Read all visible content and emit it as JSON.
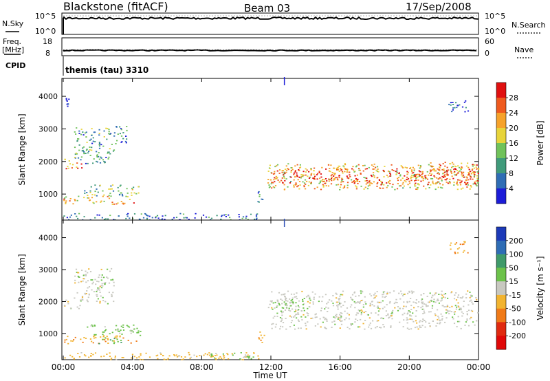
{
  "header": {
    "station": "Blackstone (fitACF)",
    "beam": "Beam 03",
    "date": "17/Sep/2008"
  },
  "status": {
    "left_labels": [
      "N.Sky",
      "Freq.",
      "[MHz]",
      "CPID"
    ],
    "right_labels": [
      "N.Search",
      "Nave"
    ],
    "sky_ticks": [
      "10^5",
      "10^0"
    ],
    "search_ticks": [
      "10^5",
      "10^0"
    ],
    "freq_ticks": [
      "18",
      "8"
    ],
    "nave_ticks": [
      "60",
      "0"
    ],
    "cpid_text": "themis (tau) 3310"
  },
  "chart_data": [
    {
      "type": "heatmap",
      "title": "",
      "xlabel": "Time UT",
      "ylabel": "Slant Range [km]",
      "x_ticks": [
        "00:00",
        "04:00",
        "08:00",
        "12:00",
        "16:00",
        "20:00",
        "00:00"
      ],
      "x_range_hours": [
        0,
        24
      ],
      "y_range": [
        180,
        4550
      ],
      "y_ticks": [
        1000,
        2000,
        3000,
        4000
      ],
      "colorbar": {
        "label": "Power [dB]",
        "ticks": [
          "4",
          "8",
          "12",
          "16",
          "20",
          "24",
          "28"
        ],
        "range": [
          0,
          30
        ],
        "colors": [
          "#1c1cd8",
          "#2f6db5",
          "#3f9a7a",
          "#70c25a",
          "#e8d43a",
          "#f6a22a",
          "#ef5a1e",
          "#e01010"
        ]
      },
      "regions": [
        {
          "t": [
            0.0,
            1.1
          ],
          "r": [
            1780,
            2100
          ],
          "level": 22
        },
        {
          "t": [
            0.6,
            2.9
          ],
          "r": [
            1950,
            3050
          ],
          "level": 10
        },
        {
          "t": [
            2.6,
            3.7
          ],
          "r": [
            2550,
            3100
          ],
          "level": 8
        },
        {
          "t": [
            0.1,
            0.3
          ],
          "r": [
            3700,
            3950
          ],
          "level": 4
        },
        {
          "t": [
            0.0,
            4.2
          ],
          "r": [
            700,
            950
          ],
          "level": 20
        },
        {
          "t": [
            1.2,
            4.5
          ],
          "r": [
            950,
            1300
          ],
          "level": 12
        },
        {
          "t": [
            0.0,
            11.4
          ],
          "r": [
            200,
            420
          ],
          "level": 6
        },
        {
          "t": [
            11.2,
            11.6
          ],
          "r": [
            700,
            1100
          ],
          "level": 10
        },
        {
          "t": [
            11.8,
            24.0
          ],
          "r": [
            1150,
            1950
          ],
          "level": 18
        },
        {
          "t": [
            12.0,
            24.0
          ],
          "r": [
            1300,
            1800
          ],
          "level": 26
        },
        {
          "t": [
            21.0,
            24.0
          ],
          "r": [
            1650,
            2000
          ],
          "level": 22
        },
        {
          "t": [
            22.2,
            23.4
          ],
          "r": [
            3500,
            3900
          ],
          "level": 4
        }
      ]
    },
    {
      "type": "heatmap",
      "title": "",
      "xlabel": "Time UT",
      "ylabel": "Slant Range [km]",
      "x_ticks": [
        "00:00",
        "04:00",
        "08:00",
        "12:00",
        "16:00",
        "20:00",
        "00:00"
      ],
      "x_range_hours": [
        0,
        24
      ],
      "y_range": [
        180,
        4550
      ],
      "y_ticks": [
        1000,
        2000,
        3000,
        4000
      ],
      "colorbar": {
        "label": "Velocity [m s⁻¹]",
        "ticks": [
          "200",
          "100",
          "50",
          "15",
          "-15",
          "-50",
          "-100",
          "-200"
        ],
        "colors": [
          "#1c3ab8",
          "#2f6db5",
          "#3f9a6a",
          "#6cc24a",
          "#c8c8c0",
          "#f2b430",
          "#f07a18",
          "#e02a10",
          "#e00808"
        ]
      },
      "regions": [
        {
          "t": [
            0.0,
            1.1
          ],
          "r": [
            1780,
            2100
          ],
          "velocity": 0
        },
        {
          "t": [
            0.6,
            2.9
          ],
          "r": [
            1950,
            3050
          ],
          "velocity": 0
        },
        {
          "t": [
            0.0,
            4.2
          ],
          "r": [
            700,
            950
          ],
          "velocity": -40
        },
        {
          "t": [
            1.2,
            4.5
          ],
          "r": [
            950,
            1300
          ],
          "velocity": 30
        },
        {
          "t": [
            2.0,
            3.5
          ],
          "r": [
            700,
            900
          ],
          "velocity": 40
        },
        {
          "t": [
            0.0,
            11.4
          ],
          "r": [
            200,
            420
          ],
          "velocity": -30
        },
        {
          "t": [
            8.5,
            11.0
          ],
          "r": [
            200,
            420
          ],
          "velocity": 30
        },
        {
          "t": [
            11.2,
            11.6
          ],
          "r": [
            700,
            1100
          ],
          "velocity": -40
        },
        {
          "t": [
            11.8,
            24.0
          ],
          "r": [
            1150,
            2350
          ],
          "velocity": 0
        },
        {
          "t": [
            12.0,
            14.0
          ],
          "r": [
            1700,
            2100
          ],
          "velocity": 30
        },
        {
          "t": [
            22.2,
            23.4
          ],
          "r": [
            3500,
            3900
          ],
          "velocity": -40
        }
      ]
    }
  ]
}
